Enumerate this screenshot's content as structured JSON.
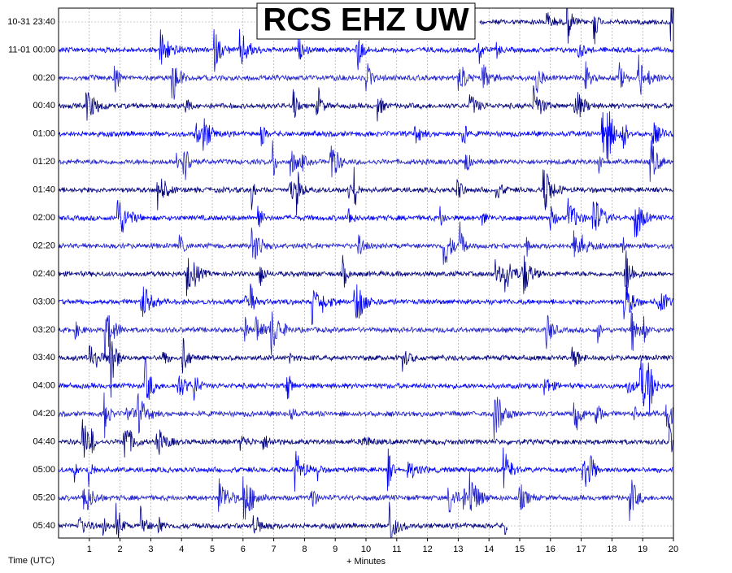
{
  "chart_data": {
    "type": "helicorder",
    "title": "RCS EHZ UW",
    "x_label": "+ Minutes",
    "y_label": "Time (UTC)",
    "xlim": [
      0,
      20
    ],
    "xticks": [
      1,
      2,
      3,
      4,
      5,
      6,
      7,
      8,
      9,
      10,
      11,
      12,
      13,
      14,
      15,
      16,
      17,
      18,
      19,
      20
    ],
    "grid": true,
    "colors": [
      "#000080",
      "#0000ff",
      "#1f1fd0"
    ],
    "rows": [
      {
        "label": "10-31 23:40",
        "start": 13.7,
        "end": 20
      },
      {
        "label": "11-01 00:00",
        "start": 0,
        "end": 20
      },
      {
        "label": "00:20",
        "start": 0,
        "end": 20
      },
      {
        "label": "00:40",
        "start": 0,
        "end": 20
      },
      {
        "label": "01:00",
        "start": 0,
        "end": 20
      },
      {
        "label": "01:20",
        "start": 0,
        "end": 20
      },
      {
        "label": "01:40",
        "start": 0,
        "end": 20
      },
      {
        "label": "02:00",
        "start": 0,
        "end": 20
      },
      {
        "label": "02:20",
        "start": 0,
        "end": 20
      },
      {
        "label": "02:40",
        "start": 0,
        "end": 20
      },
      {
        "label": "03:00",
        "start": 0,
        "end": 20
      },
      {
        "label": "03:20",
        "start": 0,
        "end": 20
      },
      {
        "label": "03:40",
        "start": 0,
        "end": 20
      },
      {
        "label": "04:00",
        "start": 0,
        "end": 20
      },
      {
        "label": "04:20",
        "start": 0,
        "end": 20
      },
      {
        "label": "04:40",
        "start": 0,
        "end": 20
      },
      {
        "label": "05:00",
        "start": 0,
        "end": 20
      },
      {
        "label": "05:20",
        "start": 0,
        "end": 20
      },
      {
        "label": "05:40",
        "start": 0,
        "end": 14.6
      }
    ]
  }
}
